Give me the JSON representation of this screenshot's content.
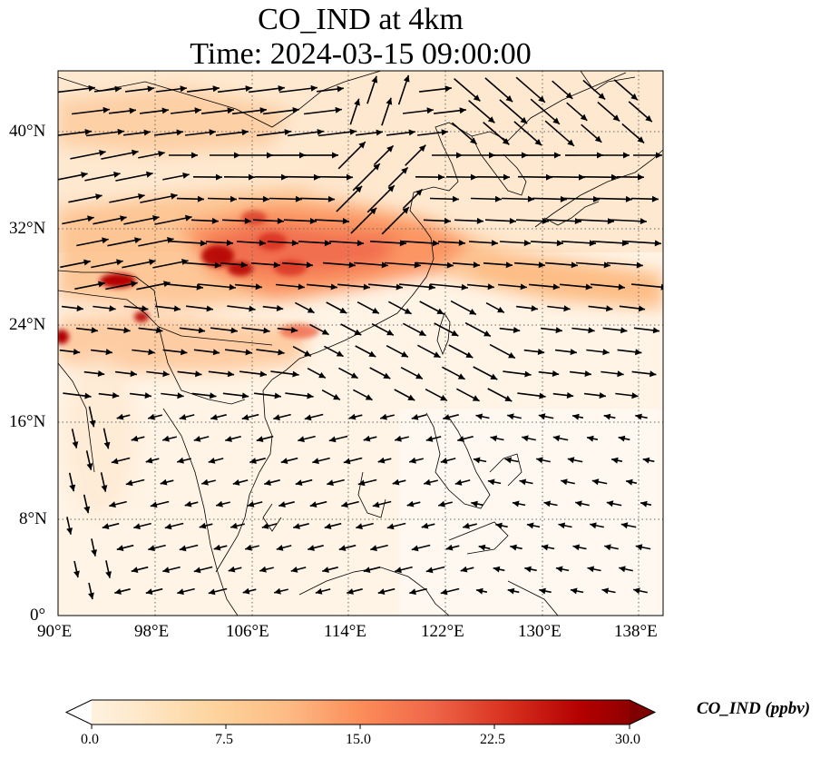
{
  "title": {
    "line1": "CO_IND at 4km",
    "line2": "Time: 2024-03-15 09:00:00"
  },
  "map": {
    "variable": "CO_IND",
    "level": "4km",
    "time": "2024-03-15 09:00:00",
    "lon_range": [
      90,
      140
    ],
    "lat_range": [
      0,
      45
    ],
    "grid": "dotted",
    "colormap": "OrRd",
    "lon_ticks": [
      "90°E",
      "98°E",
      "106°E",
      "114°E",
      "122°E",
      "130°E",
      "138°E"
    ],
    "lat_ticks": [
      "40°N",
      "32°N",
      "24°N",
      "16°N",
      "8°N",
      "0°"
    ]
  },
  "colorbar": {
    "label": "CO_IND (ppbv)",
    "ticks": [
      "0.0",
      "7.5",
      "15.0",
      "22.5",
      "30.0"
    ],
    "min": 0,
    "max": 30,
    "extend": "both",
    "colors": [
      "#fff7ec",
      "#fee8c8",
      "#fdd49e",
      "#fdbb84",
      "#fc8d59",
      "#ef6548",
      "#d7301f",
      "#b30000",
      "#7f0000"
    ]
  }
}
